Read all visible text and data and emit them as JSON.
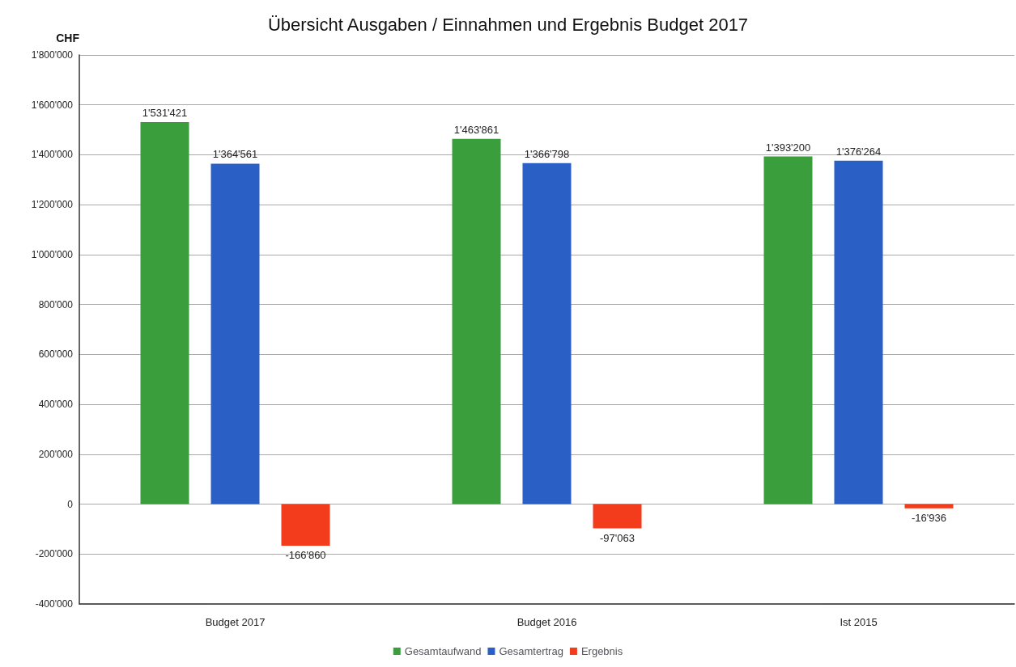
{
  "chart_data": {
    "type": "bar",
    "title": "Übersicht Ausgaben / Einnahmen und Ergebnis Budget 2017",
    "ylabel": "CHF",
    "categories": [
      "Budget 2017",
      "Budget 2016",
      "Ist 2015"
    ],
    "series": [
      {
        "name": "Gesamtaufwand",
        "color": "#3a9e3c",
        "values": [
          1531421,
          1463861,
          1393200
        ],
        "value_labels": [
          "1'531'421",
          "1'463'861",
          "1'393'200"
        ]
      },
      {
        "name": "Gesamtertrag",
        "color": "#2a5fc6",
        "values": [
          1364561,
          1366798,
          1376264
        ],
        "value_labels": [
          "1'364'561",
          "1'366'798",
          "1'376'264"
        ]
      },
      {
        "name": "Ergebnis",
        "color": "#f23c1c",
        "values": [
          -166860,
          -97063,
          -16936
        ],
        "value_labels": [
          "-166'860",
          "-97'063",
          "-16'936"
        ]
      }
    ],
    "ylim": [
      -400000,
      1800000
    ],
    "yticks": [
      {
        "value": -400000,
        "label": "-400'000"
      },
      {
        "value": -200000,
        "label": "-200'000"
      },
      0,
      {
        "value": 200000,
        "label": "200'000"
      },
      {
        "value": 400000,
        "label": "400'000"
      },
      {
        "value": 600000,
        "label": "600'000"
      },
      {
        "value": 800000,
        "label": "800'000"
      },
      {
        "value": 1000000,
        "label": "1'000'000"
      },
      {
        "value": 1200000,
        "label": "1'200'000"
      },
      {
        "value": 1400000,
        "label": "1'400'000"
      },
      {
        "value": 1600000,
        "label": "1'600'000"
      },
      {
        "value": 1800000,
        "label": "1'800'000"
      }
    ],
    "grid": "y",
    "legend": "bottom"
  }
}
